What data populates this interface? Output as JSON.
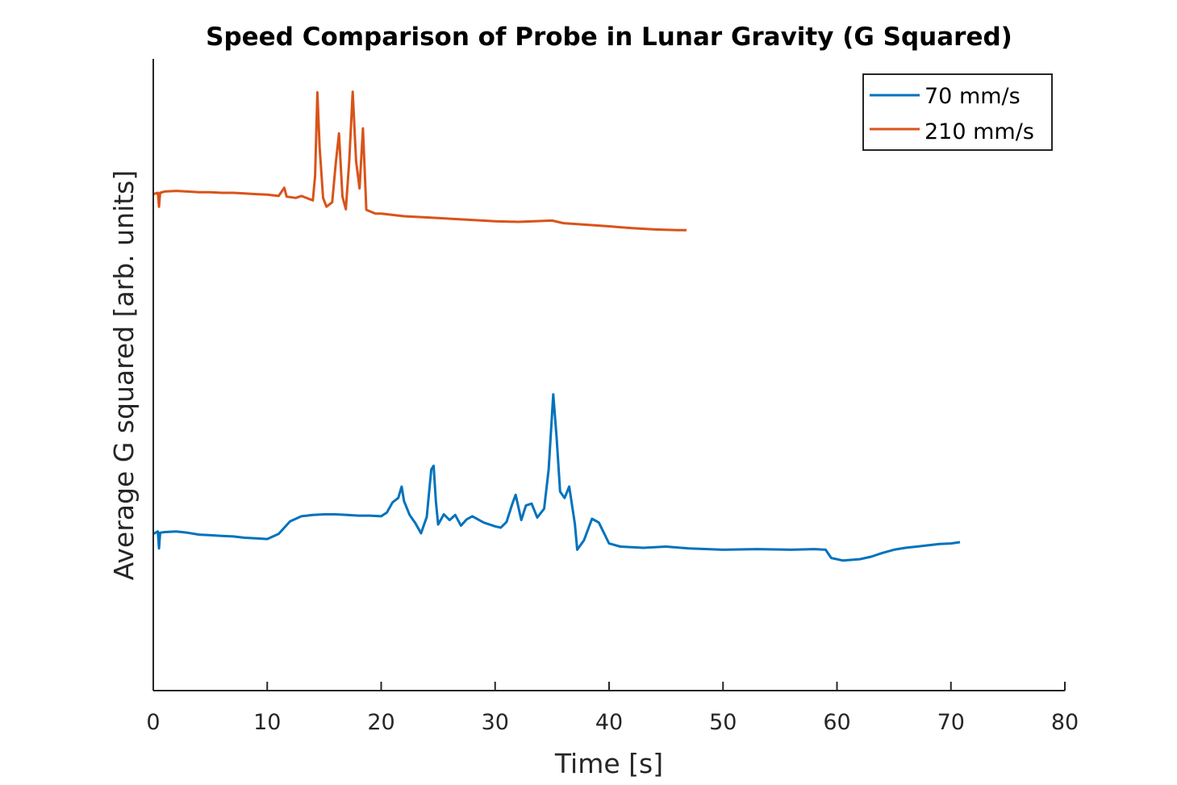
{
  "chart_data": {
    "type": "line",
    "title": "Speed Comparison of Probe in Lunar Gravity (G Squared)",
    "xlabel": "Time [s]",
    "ylabel": "Average G squared [arb. units]",
    "xlim": [
      0,
      80
    ],
    "ylim": [
      0,
      100
    ],
    "xticks": [
      0,
      10,
      20,
      30,
      40,
      50,
      60,
      70,
      80
    ],
    "xtick_labels": [
      "0",
      "10",
      "20",
      "30",
      "40",
      "50",
      "60",
      "70",
      "80"
    ],
    "y_tick_labels_shown": false,
    "grid": false,
    "legend_position": "top-right",
    "series": [
      {
        "name": "70 mm/s",
        "color": "#0072BD",
        "points": [
          [
            0.0,
            24.8
          ],
          [
            0.4,
            25.2
          ],
          [
            0.5,
            22.5
          ],
          [
            0.6,
            25.0
          ],
          [
            1.0,
            25.1
          ],
          [
            2.0,
            25.2
          ],
          [
            3.0,
            25.0
          ],
          [
            4.0,
            24.7
          ],
          [
            5.0,
            24.6
          ],
          [
            6.0,
            24.5
          ],
          [
            7.0,
            24.4
          ],
          [
            8.0,
            24.2
          ],
          [
            9.0,
            24.1
          ],
          [
            10.0,
            24.0
          ],
          [
            11.0,
            24.8
          ],
          [
            12.0,
            26.8
          ],
          [
            13.0,
            27.6
          ],
          [
            14.0,
            27.8
          ],
          [
            15.0,
            27.9
          ],
          [
            16.0,
            27.9
          ],
          [
            17.0,
            27.8
          ],
          [
            18.0,
            27.7
          ],
          [
            19.0,
            27.7
          ],
          [
            20.0,
            27.6
          ],
          [
            20.5,
            28.2
          ],
          [
            21.0,
            29.8
          ],
          [
            21.5,
            30.5
          ],
          [
            21.8,
            32.3
          ],
          [
            22.0,
            30.0
          ],
          [
            22.5,
            27.8
          ],
          [
            23.0,
            26.5
          ],
          [
            23.5,
            24.9
          ],
          [
            24.0,
            27.5
          ],
          [
            24.4,
            35.0
          ],
          [
            24.6,
            35.6
          ],
          [
            24.8,
            30.0
          ],
          [
            25.0,
            26.3
          ],
          [
            25.5,
            27.9
          ],
          [
            26.0,
            27.0
          ],
          [
            26.5,
            27.8
          ],
          [
            27.0,
            26.1
          ],
          [
            27.5,
            27.1
          ],
          [
            28.0,
            27.6
          ],
          [
            29.0,
            26.6
          ],
          [
            30.0,
            26.0
          ],
          [
            30.5,
            25.8
          ],
          [
            31.0,
            26.7
          ],
          [
            31.5,
            29.5
          ],
          [
            31.8,
            31.0
          ],
          [
            32.3,
            27.0
          ],
          [
            32.7,
            29.3
          ],
          [
            33.2,
            29.6
          ],
          [
            33.7,
            27.4
          ],
          [
            34.3,
            28.8
          ],
          [
            34.7,
            35.0
          ],
          [
            35.1,
            46.9
          ],
          [
            35.4,
            40.0
          ],
          [
            35.7,
            31.5
          ],
          [
            36.1,
            30.5
          ],
          [
            36.5,
            32.3
          ],
          [
            37.0,
            26.4
          ],
          [
            37.2,
            22.3
          ],
          [
            37.8,
            23.8
          ],
          [
            38.5,
            27.2
          ],
          [
            39.1,
            26.6
          ],
          [
            40.0,
            23.3
          ],
          [
            41.0,
            22.8
          ],
          [
            42.0,
            22.7
          ],
          [
            43.0,
            22.6
          ],
          [
            45.0,
            22.8
          ],
          [
            47.0,
            22.5
          ],
          [
            50.0,
            22.3
          ],
          [
            53.0,
            22.4
          ],
          [
            56.0,
            22.3
          ],
          [
            58.0,
            22.4
          ],
          [
            59.0,
            22.3
          ],
          [
            59.5,
            21.0
          ],
          [
            60.5,
            20.6
          ],
          [
            62.0,
            20.8
          ],
          [
            63.0,
            21.2
          ],
          [
            64.0,
            21.8
          ],
          [
            65.0,
            22.3
          ],
          [
            66.0,
            22.6
          ],
          [
            67.0,
            22.8
          ],
          [
            68.0,
            23.0
          ],
          [
            69.0,
            23.2
          ],
          [
            70.0,
            23.3
          ],
          [
            70.8,
            23.5
          ]
        ]
      },
      {
        "name": "210 mm/s",
        "color": "#D95319",
        "points": [
          [
            0.0,
            78.6
          ],
          [
            0.4,
            78.8
          ],
          [
            0.5,
            76.6
          ],
          [
            0.6,
            78.8
          ],
          [
            1.0,
            79.0
          ],
          [
            2.0,
            79.1
          ],
          [
            3.0,
            79.0
          ],
          [
            4.0,
            78.9
          ],
          [
            5.0,
            78.9
          ],
          [
            6.0,
            78.8
          ],
          [
            7.0,
            78.8
          ],
          [
            8.0,
            78.7
          ],
          [
            9.0,
            78.6
          ],
          [
            10.0,
            78.5
          ],
          [
            11.0,
            78.3
          ],
          [
            11.5,
            79.6
          ],
          [
            11.7,
            78.2
          ],
          [
            12.5,
            78.0
          ],
          [
            13.0,
            78.3
          ],
          [
            14.0,
            77.6
          ],
          [
            14.2,
            81.5
          ],
          [
            14.4,
            94.7
          ],
          [
            14.6,
            86.0
          ],
          [
            14.9,
            78.0
          ],
          [
            15.2,
            76.6
          ],
          [
            15.7,
            77.3
          ],
          [
            16.0,
            83.2
          ],
          [
            16.3,
            88.2
          ],
          [
            16.6,
            78.2
          ],
          [
            16.9,
            76.2
          ],
          [
            17.2,
            83.8
          ],
          [
            17.5,
            94.8
          ],
          [
            17.8,
            83.8
          ],
          [
            18.1,
            79.5
          ],
          [
            18.4,
            89.0
          ],
          [
            18.7,
            76.1
          ],
          [
            19.5,
            75.5
          ],
          [
            20.0,
            75.5
          ],
          [
            22.0,
            75.1
          ],
          [
            25.0,
            74.8
          ],
          [
            27.0,
            74.6
          ],
          [
            30.0,
            74.3
          ],
          [
            32.0,
            74.2
          ],
          [
            35.0,
            74.4
          ],
          [
            36.0,
            74.0
          ],
          [
            40.0,
            73.5
          ],
          [
            42.0,
            73.2
          ],
          [
            44.0,
            73.0
          ],
          [
            46.0,
            72.9
          ],
          [
            46.8,
            72.9
          ]
        ]
      }
    ]
  }
}
